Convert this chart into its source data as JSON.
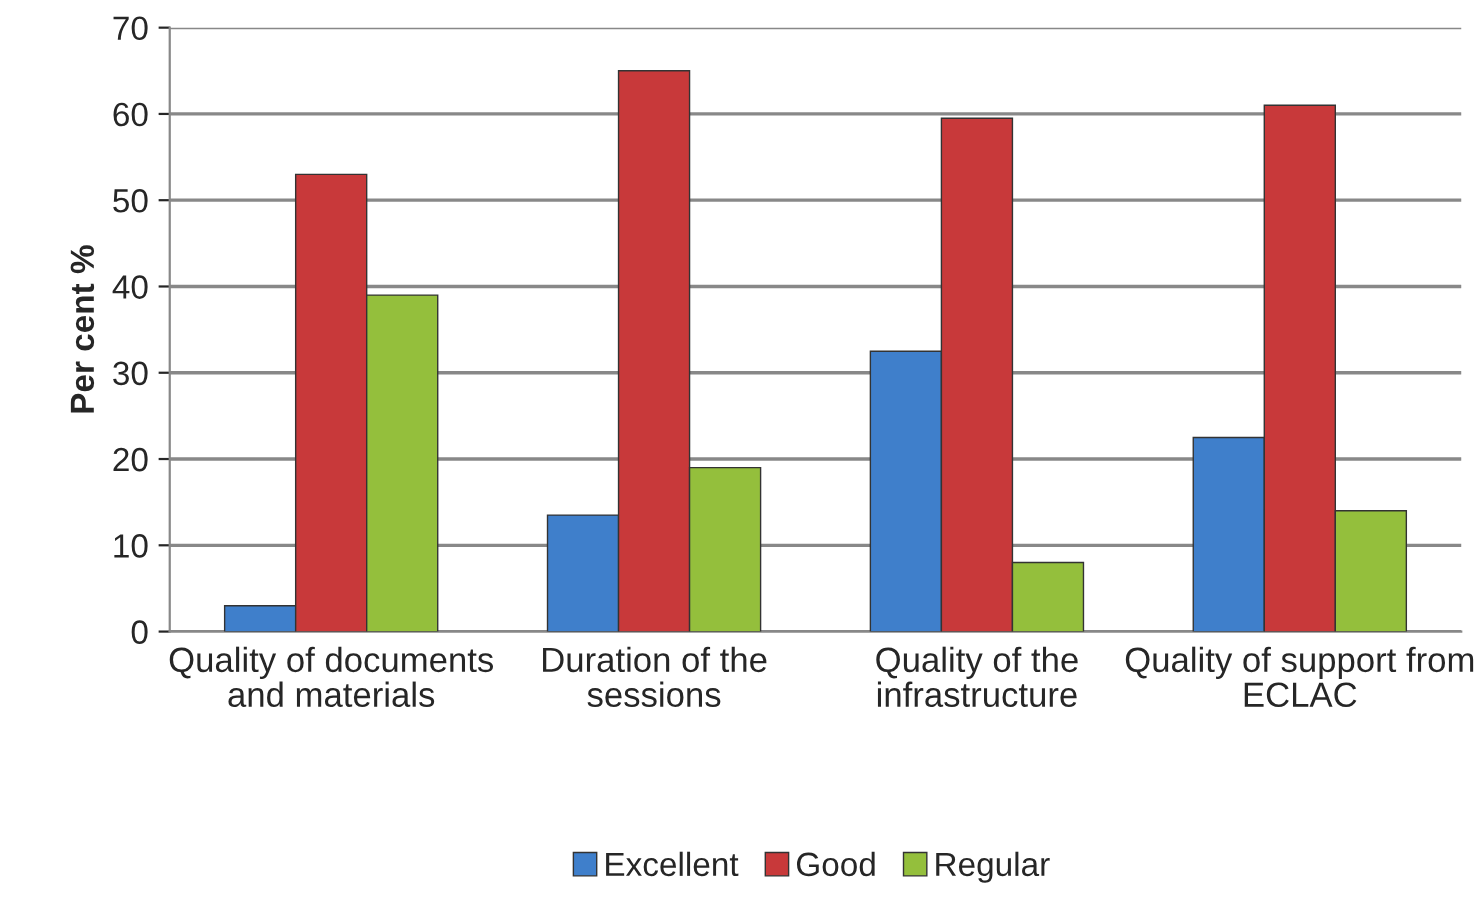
{
  "chart_data": {
    "type": "bar",
    "ylabel": "Per cent %",
    "categories": [
      "Quality of documents and materials",
      "Duration of the sessions",
      "Quality of the infrastructure",
      "Quality of support from ECLAC"
    ],
    "series": [
      {
        "name": "Excellent",
        "color": "#3f7fcb",
        "values": [
          3,
          13.5,
          32.5,
          22.5
        ]
      },
      {
        "name": "Good",
        "color": "#c8393a",
        "values": [
          53,
          65,
          59.5,
          61
        ]
      },
      {
        "name": "Regular",
        "color": "#94bf3c",
        "values": [
          39,
          19,
          8,
          14
        ]
      }
    ],
    "ylim": [
      0,
      70
    ],
    "yticks": [
      0,
      10,
      20,
      30,
      40,
      50,
      60,
      70
    ],
    "grid": "y",
    "legend": "bottom"
  }
}
